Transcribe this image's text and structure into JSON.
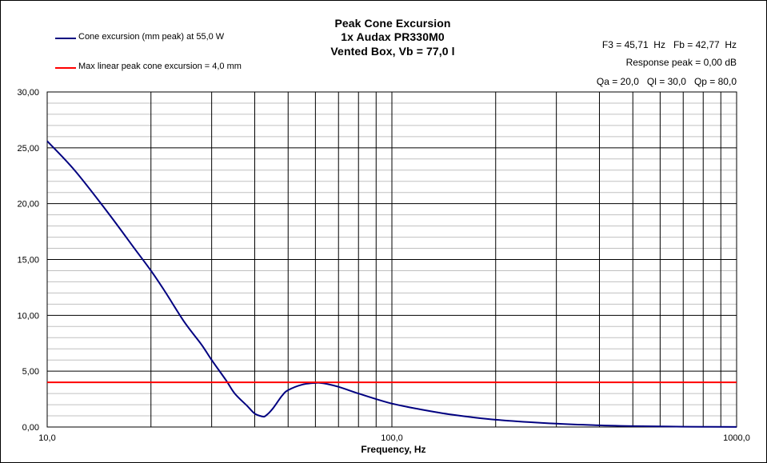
{
  "chart_data": {
    "type": "line",
    "title": [
      "Peak Cone Excursion",
      "1x Audax PR330M0",
      "Vented Box, Vb = 77,0 l"
    ],
    "xlabel": "Frequency, Hz",
    "ylabel": "",
    "xscale": "log",
    "xlim": [
      10,
      1000
    ],
    "ylim": [
      0,
      30
    ],
    "grid": true,
    "legend_position": "top-left",
    "x_tick_labels": [
      "10,0",
      "100,0",
      "1000,0"
    ],
    "y_tick_labels": [
      "0,00",
      "5,00",
      "10,00",
      "15,00",
      "20,00",
      "25,00",
      "30,00"
    ],
    "annotations": [
      "F3 = 45,71  Hz   Fb = 42,77  Hz",
      "Response peak = 0,00 dB",
      "Qa = 20,0   Ql = 30,0   Qp = 80,0"
    ],
    "series": [
      {
        "name": "Cone excursion (mm peak) at 55,0 W",
        "color": "#000080",
        "x": [
          10,
          12,
          15,
          18,
          20,
          22,
          25,
          28,
          30,
          33,
          35,
          38,
          40,
          42,
          43,
          45,
          48,
          50,
          55,
          60,
          62,
          65,
          70,
          80,
          90,
          100,
          120,
          150,
          200,
          300,
          400,
          500,
          700,
          1000
        ],
        "y": [
          25.6,
          23.0,
          19.2,
          15.9,
          14.0,
          12.1,
          9.4,
          7.4,
          6.0,
          4.2,
          3.0,
          1.9,
          1.2,
          0.95,
          1.0,
          1.6,
          2.8,
          3.3,
          3.8,
          3.95,
          3.95,
          3.85,
          3.6,
          3.0,
          2.5,
          2.1,
          1.6,
          1.1,
          0.65,
          0.3,
          0.15,
          0.08,
          0.03,
          0.01
        ]
      },
      {
        "name": "Max linear peak cone excursion = 4,0 mm",
        "color": "#ff0000",
        "x": [
          10,
          1000
        ],
        "y": [
          4.0,
          4.0
        ]
      }
    ]
  }
}
